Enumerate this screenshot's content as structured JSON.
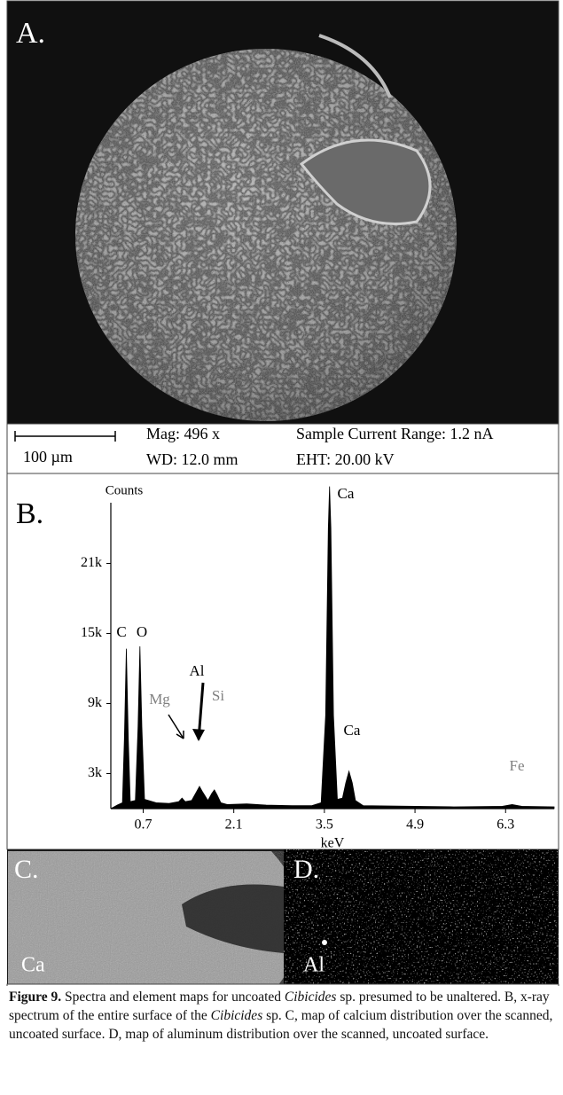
{
  "panel_a": {
    "label": "A."
  },
  "scale_info": {
    "scale_bar": "100 µm",
    "mag": "Mag: 496 x",
    "wd": "WD: 12.0 mm",
    "current": "Sample Current Range: 1.2 nA",
    "eht": "EHT: 20.00 kV"
  },
  "chart_data": {
    "type": "area",
    "panel_label": "B.",
    "y_label": "Counts",
    "x_label": "keV",
    "x": [
      0.2,
      0.3,
      0.38,
      0.41,
      0.44,
      0.47,
      0.5,
      0.58,
      0.62,
      0.65,
      0.68,
      0.72,
      0.9,
      1.1,
      1.25,
      1.3,
      1.35,
      1.45,
      1.53,
      1.57,
      1.61,
      1.7,
      1.76,
      1.8,
      1.84,
      1.9,
      2.0,
      2.3,
      2.6,
      3.0,
      3.3,
      3.45,
      3.52,
      3.56,
      3.58,
      3.6,
      3.64,
      3.7,
      3.78,
      3.83,
      3.88,
      3.93,
      3.98,
      4.1,
      4.9,
      5.5,
      6.25,
      6.4,
      6.55,
      7.05
    ],
    "values": [
      0,
      300,
      500,
      6000,
      13700,
      6000,
      600,
      700,
      7000,
      13900,
      7000,
      800,
      500,
      450,
      600,
      900,
      600,
      700,
      1500,
      1900,
      1500,
      700,
      1300,
      1600,
      1200,
      500,
      350,
      400,
      300,
      250,
      250,
      500,
      8000,
      24000,
      27600,
      24000,
      8000,
      800,
      900,
      2200,
      3200,
      2200,
      700,
      250,
      200,
      150,
      200,
      350,
      200,
      150
    ],
    "color": "#000000",
    "xlim": [
      0.2,
      7.05
    ],
    "ylim": [
      0,
      26200
    ],
    "xticks": [
      0.7,
      2.1,
      3.5,
      4.9,
      6.3
    ],
    "yticks": [
      {
        "value": 3000,
        "label": "3k"
      },
      {
        "value": 9000,
        "label": "9k"
      },
      {
        "value": 15000,
        "label": "15k"
      },
      {
        "value": 21000,
        "label": "21k"
      }
    ],
    "annotations": [
      {
        "text": "C",
        "color": "#000000"
      },
      {
        "text": "O",
        "color": "#000000"
      },
      {
        "text": "Mg",
        "color": "#808080"
      },
      {
        "text": "Al",
        "color": "#000000"
      },
      {
        "text": "Si",
        "color": "#808080"
      },
      {
        "text": "Ca",
        "color": "#000000"
      },
      {
        "text": "Ca",
        "color": "#000000"
      },
      {
        "text": "Fe",
        "color": "#808080"
      }
    ]
  },
  "panel_c": {
    "label": "C.",
    "element": "Ca"
  },
  "panel_d": {
    "label": "D.",
    "element": "Al"
  },
  "caption": {
    "label": "Figure 9.",
    "text_1": " Spectra and element maps for uncoated ",
    "genus_1": "Cibicides",
    "text_2": " sp. presumed to be unaltered. B, x-ray spectrum of the entire surface of the ",
    "genus_2": "Cibicides",
    "text_3": " sp. C, map of calcium distribution over the scanned, uncoated surface. D, map of aluminum distribution over the scanned, uncoated surface."
  }
}
